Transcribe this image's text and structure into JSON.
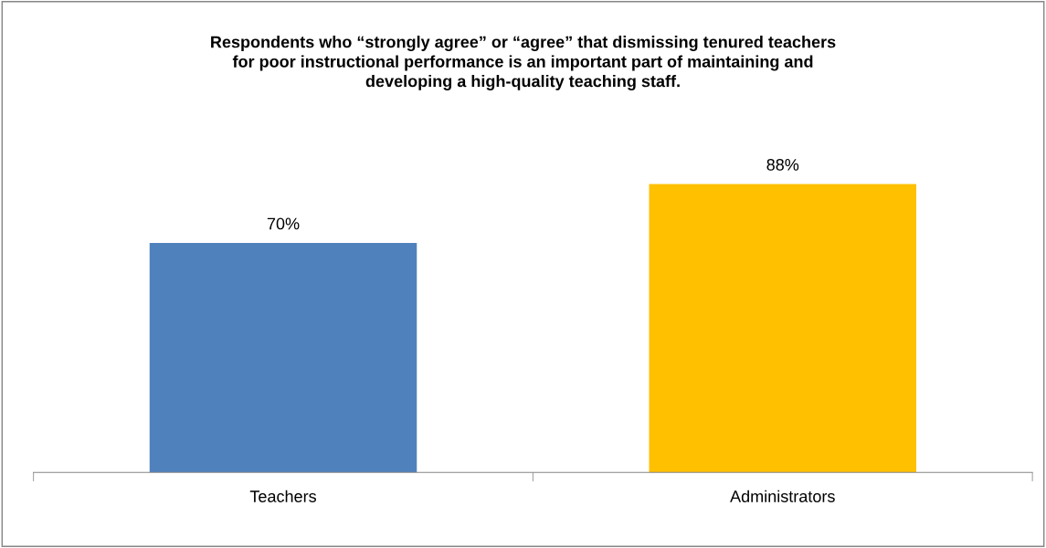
{
  "chart_data": {
    "type": "bar",
    "title": "Respondents who “strongly agree” or “agree” that dismissing tenured teachers\nfor poor instructional performance is an important part of maintaining and\ndeveloping a high-quality teaching staff.",
    "categories": [
      "Teachers",
      "Administrators"
    ],
    "values": [
      70,
      88
    ],
    "colors": [
      "#4f81bd",
      "#ffc000"
    ],
    "value_labels": [
      "70%",
      "88%"
    ],
    "tick_labels": "x",
    "grid": false,
    "legend": false
  }
}
